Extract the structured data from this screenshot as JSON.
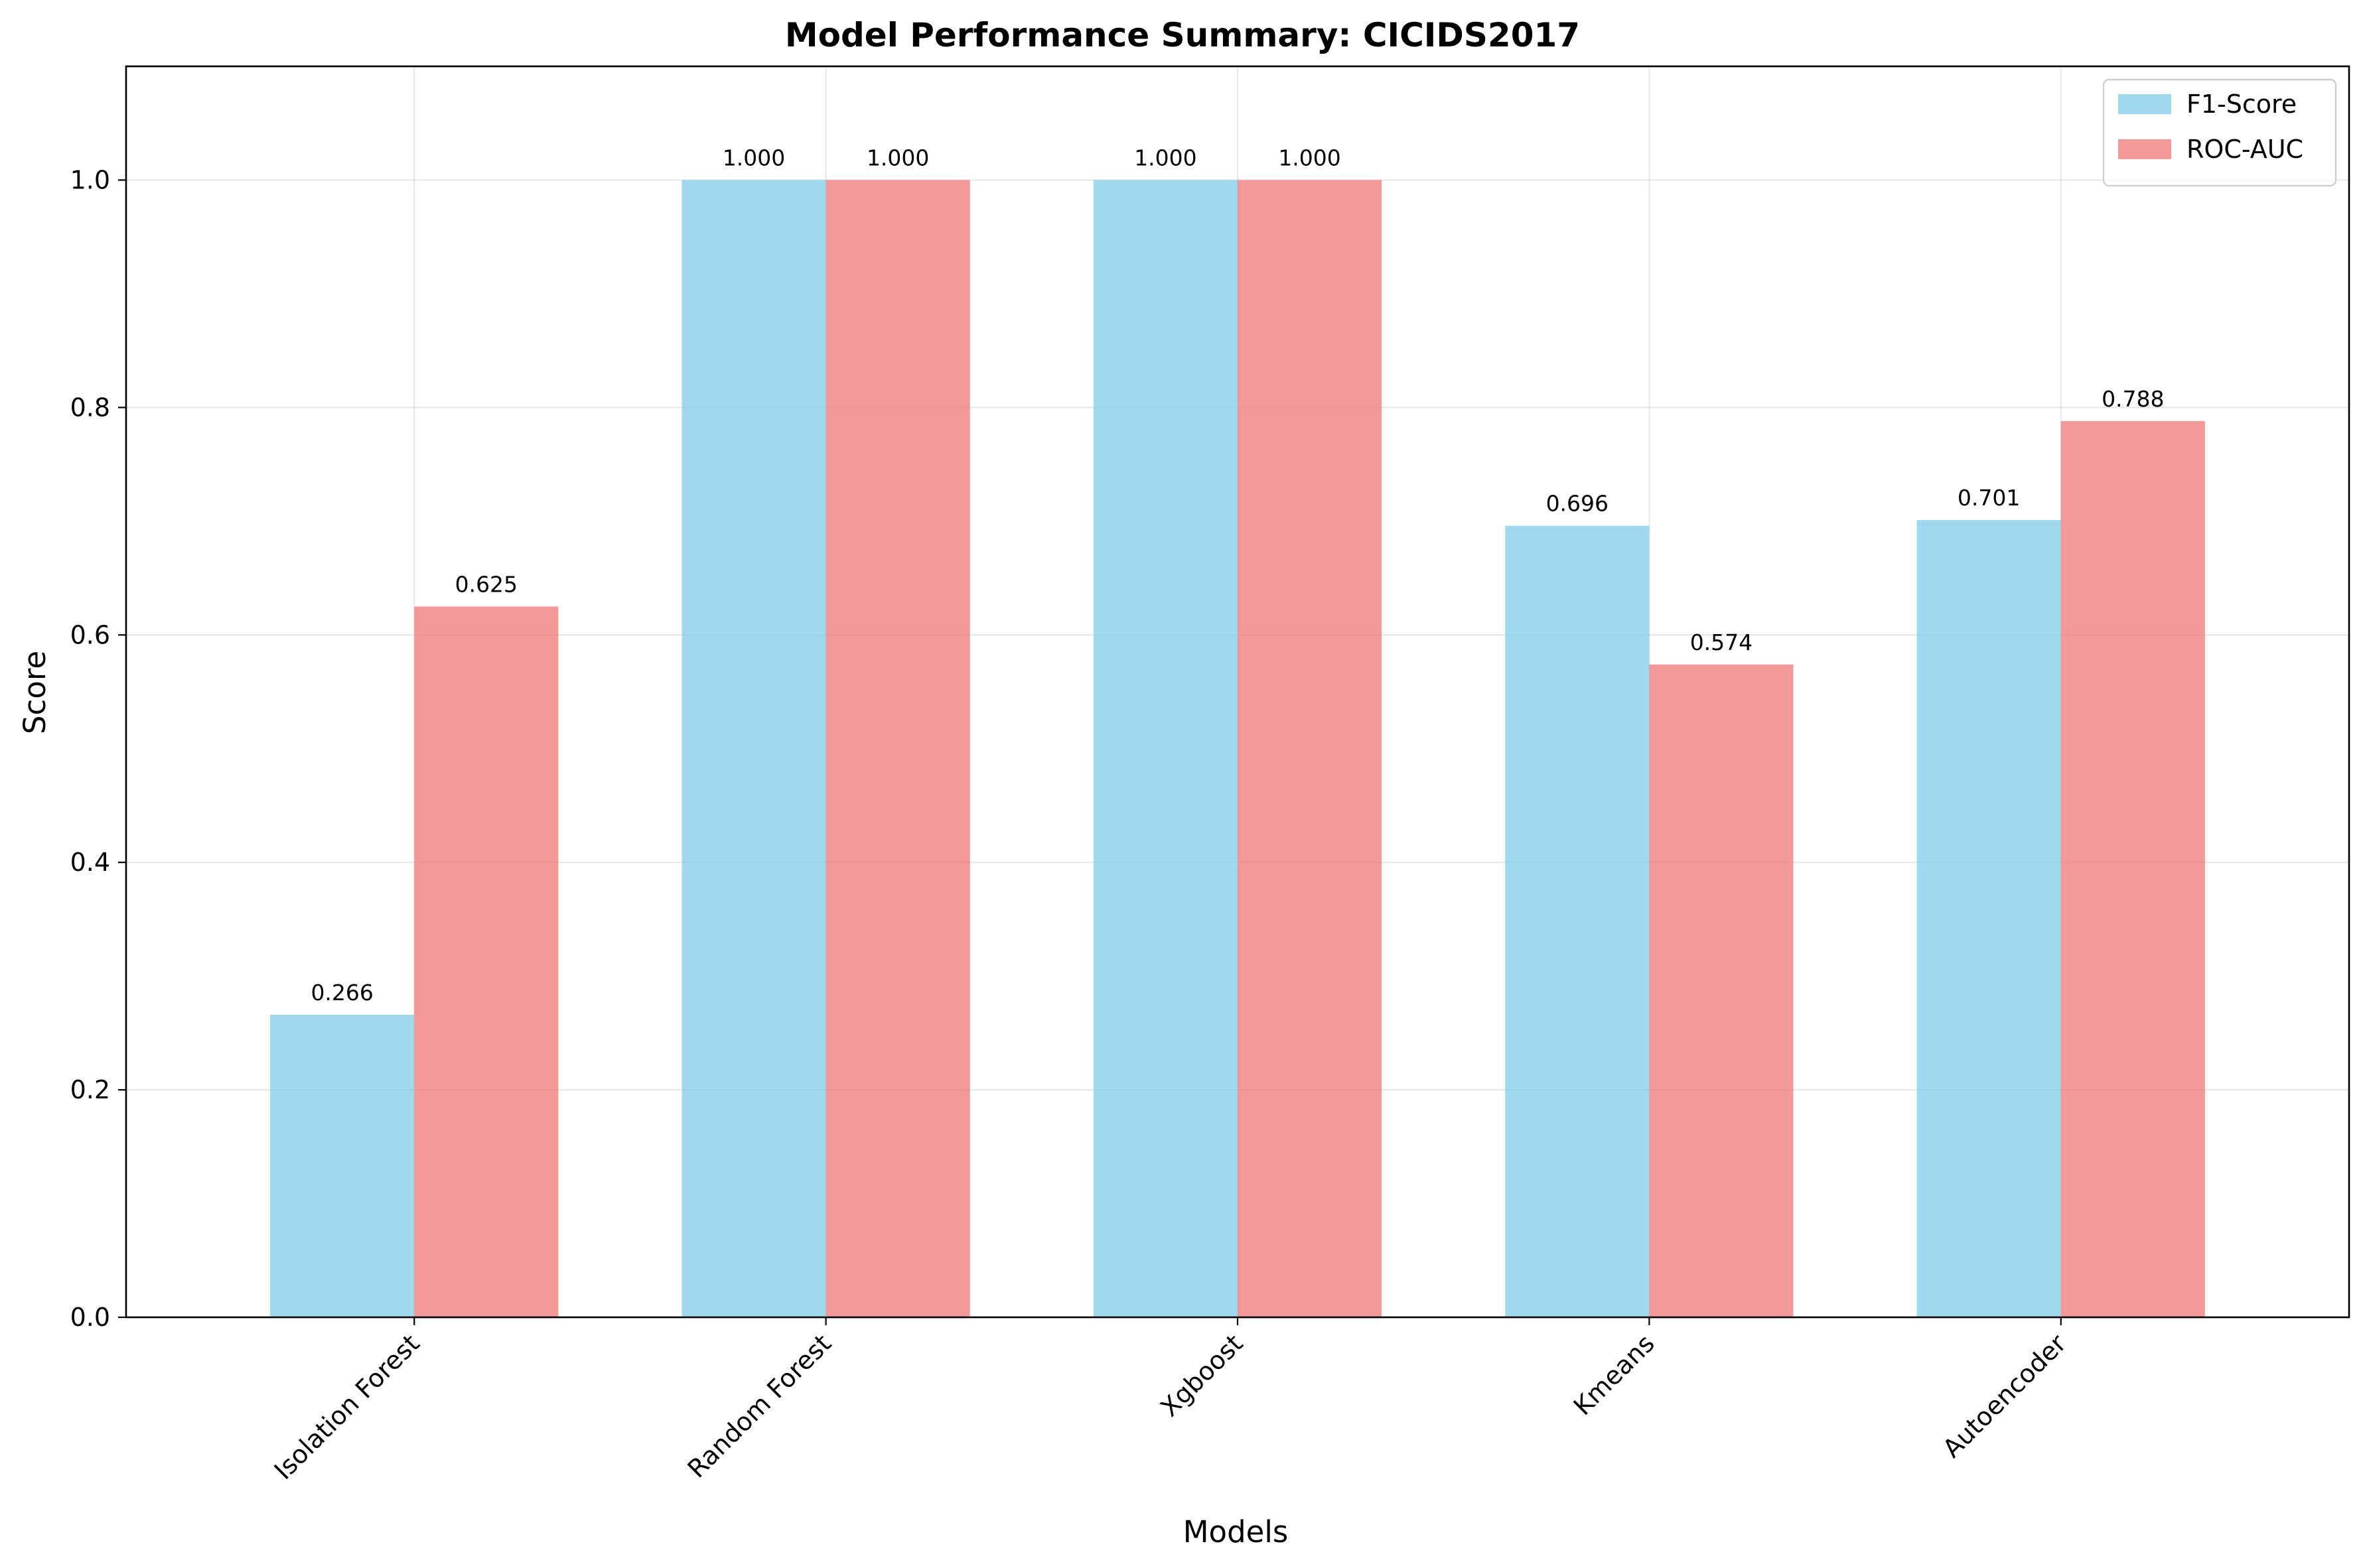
{
  "chart_data": {
    "type": "bar",
    "title": "Model Performance Summary: CICIDS2017",
    "xlabel": "Models",
    "ylabel": "Score",
    "categories": [
      "Isolation Forest",
      "Random Forest",
      "Xgboost",
      "Kmeans",
      "Autoencoder"
    ],
    "series": [
      {
        "name": "F1-Score",
        "color": "#87ceeb",
        "values": [
          0.266,
          1.0,
          1.0,
          0.696,
          0.701
        ],
        "labels": [
          "0.266",
          "1.000",
          "1.000",
          "0.696",
          "0.701"
        ]
      },
      {
        "name": "ROC-AUC",
        "color": "#f08080",
        "values": [
          0.625,
          1.0,
          1.0,
          0.574,
          0.788
        ],
        "labels": [
          "0.625",
          "1.000",
          "1.000",
          "0.574",
          "0.788"
        ]
      }
    ],
    "ylim": [
      0,
      1.1
    ],
    "yticks": [
      0.0,
      0.2,
      0.4,
      0.6,
      0.8,
      1.0
    ],
    "ytick_labels": [
      "0.0",
      "0.2",
      "0.4",
      "0.6",
      "0.8",
      "1.0"
    ],
    "grid": true,
    "legend_position": "top-right"
  }
}
